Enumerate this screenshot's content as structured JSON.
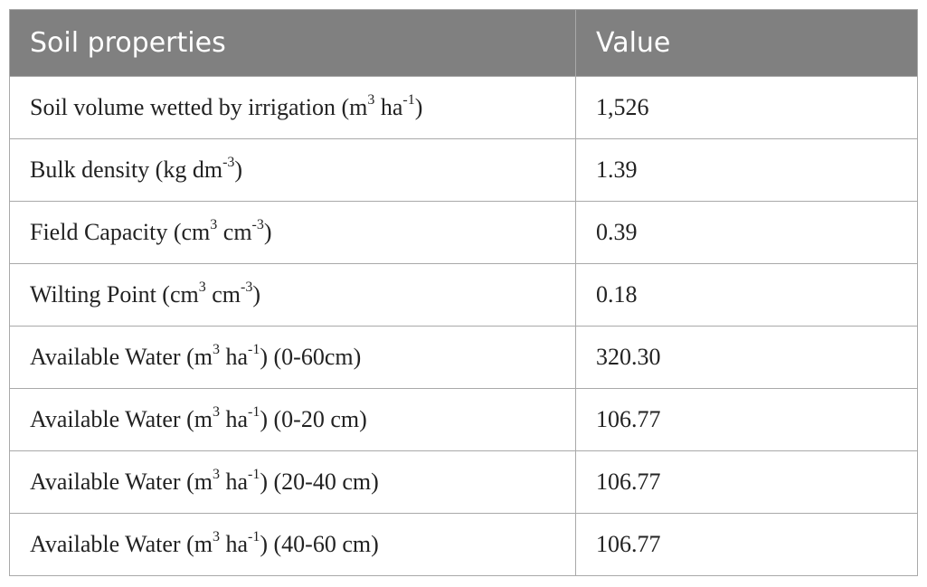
{
  "table": {
    "headers": [
      "Soil properties",
      "Value"
    ],
    "rows": [
      {
        "label": [
          {
            "t": "Soil volume wetted by irrigation (m"
          },
          {
            "sup": "3"
          },
          {
            "t": " ha"
          },
          {
            "sup": "-1"
          },
          {
            "t": ")"
          }
        ],
        "value": "1,526"
      },
      {
        "label": [
          {
            "t": "Bulk density (kg dm"
          },
          {
            "sup": "-3"
          },
          {
            "t": ")"
          }
        ],
        "value": "1.39"
      },
      {
        "label": [
          {
            "t": "Field Capacity (cm"
          },
          {
            "sup": "3"
          },
          {
            "t": " cm"
          },
          {
            "sup": "-3"
          },
          {
            "t": ")"
          }
        ],
        "value": "0.39"
      },
      {
        "label": [
          {
            "t": "Wilting Point (cm"
          },
          {
            "sup": "3"
          },
          {
            "t": " cm"
          },
          {
            "sup": "-3"
          },
          {
            "t": ")"
          }
        ],
        "value": "0.18"
      },
      {
        "label": [
          {
            "t": "Available Water (m"
          },
          {
            "sup": "3"
          },
          {
            "t": " ha"
          },
          {
            "sup": "-1"
          },
          {
            "t": ") (0-60cm)"
          }
        ],
        "value": "320.30"
      },
      {
        "label": [
          {
            "t": "Available Water (m"
          },
          {
            "sup": "3"
          },
          {
            "t": " ha"
          },
          {
            "sup": "-1"
          },
          {
            "t": ") (0-20 cm)"
          }
        ],
        "value": "106.77"
      },
      {
        "label": [
          {
            "t": "Available Water (m"
          },
          {
            "sup": "3"
          },
          {
            "t": " ha"
          },
          {
            "sup": "-1"
          },
          {
            "t": ") (20-40 cm)"
          }
        ],
        "value": "106.77"
      },
      {
        "label": [
          {
            "t": "Available Water (m"
          },
          {
            "sup": "3"
          },
          {
            "t": " ha"
          },
          {
            "sup": "-1"
          },
          {
            "t": ") (40-60 cm)"
          }
        ],
        "value": "106.77"
      }
    ]
  },
  "colors": {
    "header_bg": "#808080",
    "header_text": "#ffffff",
    "border": "#a9a9a9"
  }
}
